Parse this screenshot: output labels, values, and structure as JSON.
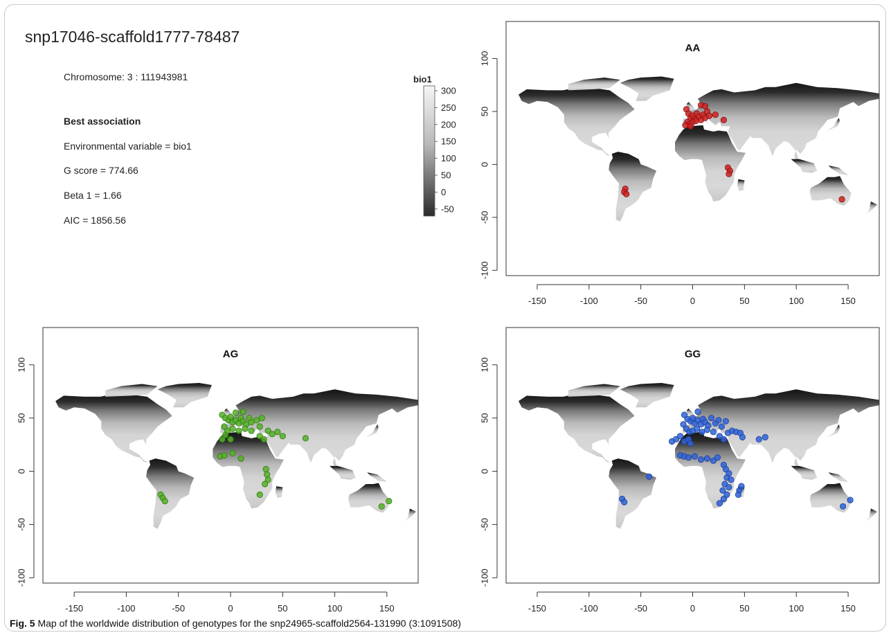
{
  "snp_title": "snp17046-scaffold1777-78487",
  "chromosome": "Chromosome: 3 : 111943981",
  "best_association": "Best association",
  "environmental_variable": "Environmental variable =  bio1",
  "g_score": "G score =  774.66",
  "beta1": "Beta 1 =  1.66",
  "aic": "AIC =  1856.56",
  "legend": {
    "title": "bio1",
    "ticks": [
      "300",
      "250",
      "200",
      "150",
      "100",
      "50",
      "0",
      "-50"
    ],
    "colors": {
      "high": "#f6f6f6",
      "low": "#2b2b2b"
    }
  },
  "caption_label": "Fig. 5",
  "caption_text": "  Map of the worldwide distribution of genotypes for the snp24965-scaffold2564-131990 (3:1091508)",
  "axes": {
    "x_ticks": [
      "-150",
      "-100",
      "-50",
      "0",
      "50",
      "100",
      "150"
    ],
    "y_ticks": [
      "-100",
      "-50",
      "0",
      "50",
      "100"
    ]
  },
  "panels": [
    {
      "title": "AA",
      "color": "#cc2222",
      "stroke": "#8a1111",
      "points": [
        [
          -6,
          52
        ],
        [
          -4,
          48
        ],
        [
          -2,
          44
        ],
        [
          0,
          46
        ],
        [
          2,
          43
        ],
        [
          4,
          48
        ],
        [
          6,
          45
        ],
        [
          8,
          42
        ],
        [
          10,
          47
        ],
        [
          12,
          44
        ],
        [
          14,
          50
        ],
        [
          16,
          46
        ],
        [
          -5,
          40
        ],
        [
          -3,
          38
        ],
        [
          0,
          40
        ],
        [
          3,
          41
        ],
        [
          8,
          56
        ],
        [
          12,
          55
        ],
        [
          22,
          47
        ],
        [
          30,
          42
        ],
        [
          -7,
          37
        ],
        [
          -2,
          36
        ],
        [
          34,
          -3
        ],
        [
          36,
          -6
        ],
        [
          35,
          -9
        ],
        [
          -65,
          -23
        ],
        [
          -66,
          -26
        ],
        [
          -64,
          -28
        ],
        [
          144,
          -33
        ]
      ]
    },
    {
      "title": "AG",
      "color": "#55b026",
      "stroke": "#2e7a12",
      "points": [
        [
          -8,
          53
        ],
        [
          -5,
          50
        ],
        [
          -2,
          48
        ],
        [
          0,
          51
        ],
        [
          2,
          46
        ],
        [
          5,
          48
        ],
        [
          8,
          45
        ],
        [
          10,
          50
        ],
        [
          12,
          47
        ],
        [
          15,
          44
        ],
        [
          18,
          50
        ],
        [
          20,
          46
        ],
        [
          25,
          48
        ],
        [
          28,
          42
        ],
        [
          30,
          50
        ],
        [
          5,
          55
        ],
        [
          12,
          56
        ],
        [
          -6,
          42
        ],
        [
          -3,
          38
        ],
        [
          2,
          40
        ],
        [
          8,
          38
        ],
        [
          14,
          40
        ],
        [
          20,
          38
        ],
        [
          28,
          33
        ],
        [
          32,
          30
        ],
        [
          36,
          38
        ],
        [
          40,
          35
        ],
        [
          45,
          37
        ],
        [
          50,
          33
        ],
        [
          72,
          31
        ],
        [
          -8,
          30
        ],
        [
          -5,
          34
        ],
        [
          0,
          30
        ],
        [
          -10,
          14
        ],
        [
          -6,
          15
        ],
        [
          2,
          17
        ],
        [
          10,
          12
        ],
        [
          34,
          2
        ],
        [
          35,
          -3
        ],
        [
          36,
          -8
        ],
        [
          33,
          -12
        ],
        [
          28,
          -22
        ],
        [
          -67,
          -22
        ],
        [
          -65,
          -25
        ],
        [
          -63,
          -28
        ],
        [
          145,
          -33
        ],
        [
          152,
          -28
        ]
      ]
    },
    {
      "title": "GG",
      "color": "#2f63d8",
      "stroke": "#1a3f9a",
      "points": [
        [
          -8,
          53
        ],
        [
          -5,
          49
        ],
        [
          -2,
          47
        ],
        [
          0,
          50
        ],
        [
          2,
          45
        ],
        [
          5,
          48
        ],
        [
          8,
          44
        ],
        [
          10,
          49
        ],
        [
          12,
          46
        ],
        [
          15,
          43
        ],
        [
          18,
          50
        ],
        [
          22,
          45
        ],
        [
          25,
          48
        ],
        [
          28,
          42
        ],
        [
          32,
          47
        ],
        [
          5,
          56
        ],
        [
          -9,
          44
        ],
        [
          -6,
          40
        ],
        [
          -3,
          37
        ],
        [
          0,
          38
        ],
        [
          4,
          40
        ],
        [
          9,
          37
        ],
        [
          14,
          39
        ],
        [
          20,
          37
        ],
        [
          26,
          33
        ],
        [
          30,
          30
        ],
        [
          34,
          36
        ],
        [
          38,
          38
        ],
        [
          42,
          37
        ],
        [
          46,
          36
        ],
        [
          48,
          32
        ],
        [
          64,
          30
        ],
        [
          70,
          32
        ],
        [
          -20,
          28
        ],
        [
          -16,
          30
        ],
        [
          -12,
          33
        ],
        [
          -8,
          28
        ],
        [
          -4,
          30
        ],
        [
          -2,
          26
        ],
        [
          -12,
          15
        ],
        [
          -8,
          14
        ],
        [
          -4,
          13
        ],
        [
          2,
          14
        ],
        [
          8,
          11
        ],
        [
          14,
          12
        ],
        [
          20,
          10
        ],
        [
          24,
          13
        ],
        [
          30,
          6
        ],
        [
          32,
          2
        ],
        [
          35,
          -2
        ],
        [
          33,
          -6
        ],
        [
          37,
          -8
        ],
        [
          31,
          -12
        ],
        [
          35,
          -15
        ],
        [
          29,
          -18
        ],
        [
          33,
          -22
        ],
        [
          30,
          -26
        ],
        [
          26,
          -30
        ],
        [
          45,
          -18
        ],
        [
          47,
          -14
        ],
        [
          44,
          -22
        ],
        [
          -42,
          -5
        ],
        [
          -68,
          -26
        ],
        [
          -66,
          -29
        ],
        [
          145,
          -33
        ],
        [
          152,
          -27
        ]
      ]
    }
  ]
}
